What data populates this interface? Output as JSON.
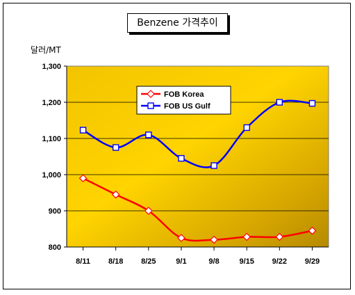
{
  "chart_data": {
    "type": "line",
    "title": "Benzene 가격추이",
    "ylabel": "달러/MT",
    "xlabel": "",
    "categories": [
      "8/11",
      "8/18",
      "8/25",
      "9/1",
      "9/8",
      "9/15",
      "9/22",
      "9/29"
    ],
    "ylim": [
      800,
      1300
    ],
    "yticks": [
      800,
      900,
      1000,
      1100,
      1200,
      1300
    ],
    "ytick_labels": [
      "800",
      "900",
      "1,000",
      "1,100",
      "1,200",
      "1,300"
    ],
    "grid": true,
    "legend_position": "top-right",
    "series": [
      {
        "name": "FOB Korea",
        "color": "#ff0000",
        "marker": "diamond",
        "values": [
          990,
          945,
          900,
          825,
          820,
          828,
          828,
          845
        ]
      },
      {
        "name": "FOB US Gulf",
        "color": "#0000ff",
        "marker": "square",
        "values": [
          1123,
          1075,
          1110,
          1045,
          1025,
          1130,
          1200,
          1197
        ]
      }
    ]
  }
}
